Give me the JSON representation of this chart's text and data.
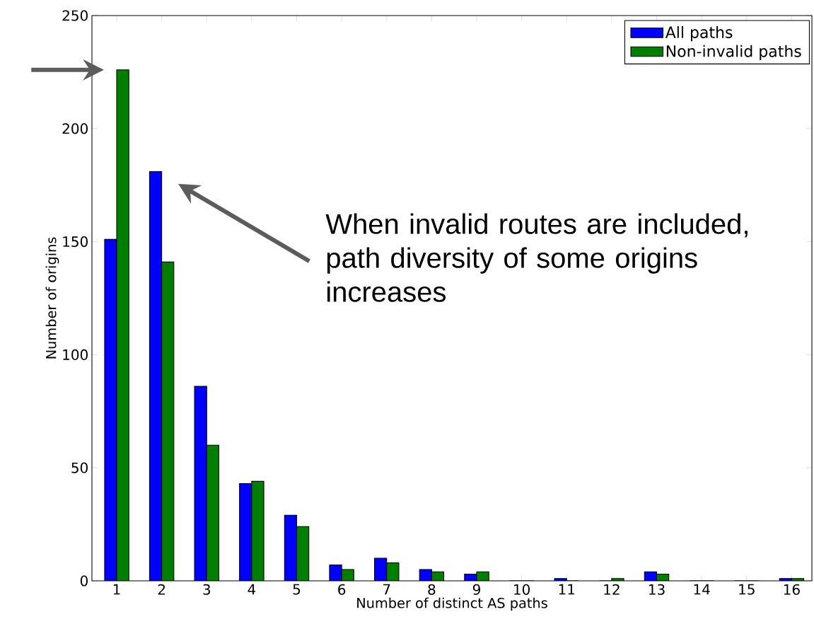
{
  "chart_data": {
    "type": "bar",
    "xlabel": "Number of distinct AS paths",
    "ylabel": "Number of origins",
    "categories": [
      "1",
      "2",
      "3",
      "4",
      "5",
      "6",
      "7",
      "8",
      "9",
      "10",
      "11",
      "12",
      "13",
      "14",
      "15",
      "16"
    ],
    "series": [
      {
        "name": "All paths",
        "color": "#0000ff",
        "values": [
          151,
          181,
          86,
          43,
          29,
          7,
          10,
          5,
          3,
          0,
          1,
          0,
          4,
          0,
          0,
          1
        ]
      },
      {
        "name": "Non-invalid paths",
        "color": "#007f00",
        "values": [
          226,
          141,
          60,
          44,
          24,
          5,
          8,
          4,
          4,
          0,
          0,
          1,
          3,
          0,
          0,
          1
        ]
      }
    ],
    "ylim": [
      0,
      250
    ],
    "yticks": [
      0,
      50,
      100,
      150,
      200,
      250
    ],
    "legend": "top right",
    "annotations": [
      "When invalid routes are included, path diversity of some origins increases"
    ]
  }
}
